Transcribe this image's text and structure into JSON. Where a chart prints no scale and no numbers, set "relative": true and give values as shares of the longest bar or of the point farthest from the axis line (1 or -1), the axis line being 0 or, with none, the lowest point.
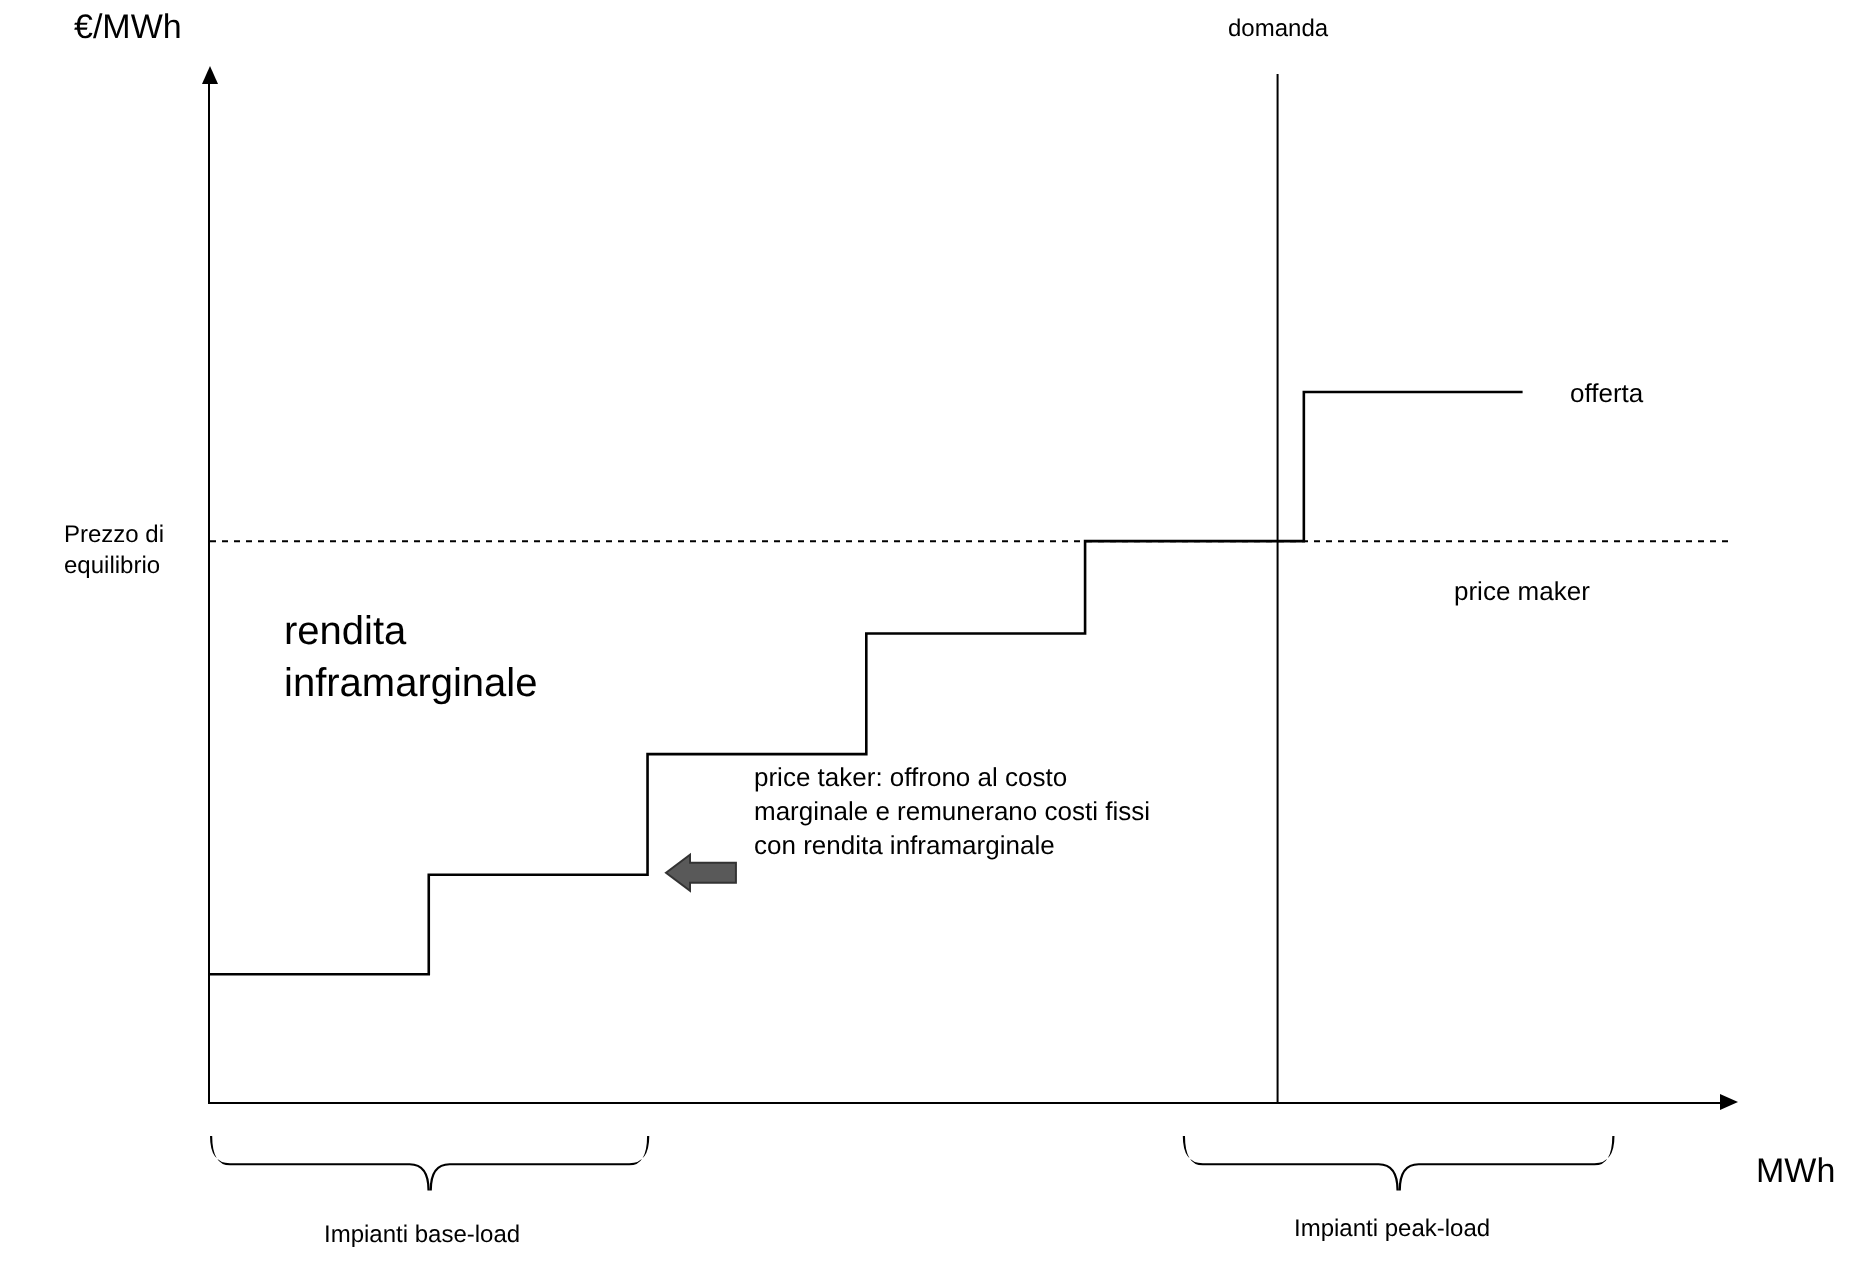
{
  "chart_data": {
    "type": "step",
    "relative": true,
    "xlabel": "MWh",
    "categories": [
      null,
      null,
      null,
      null,
      null,
      null,
      null
    ],
    "series": [
      {
        "name": "offerta",
        "color": "#000000",
        "values": [
          0.18,
          0.32,
          0.49,
          0.66,
          0.79,
          1,
          1
        ]
      }
    ],
    "ref_lines": [
      {
        "axis": "y",
        "value": 0.79,
        "label": "Prezzo di equilibrio",
        "color": "#000000",
        "line_style": "dotted"
      },
      {
        "axis": "x",
        "label": "domanda",
        "color": "#000000",
        "line_style": "solid"
      }
    ],
    "annotations": [
      "rendita inframarginale",
      "price maker",
      "price taker: offrono al costo marginale e remunerano costi fissi con rendita inframarginale",
      "Impianti base-load",
      "Impianti peak-load",
      "€/MWh"
    ],
    "grid": false,
    "legend": false,
    "marker": "none",
    "line_style": "solid"
  }
}
